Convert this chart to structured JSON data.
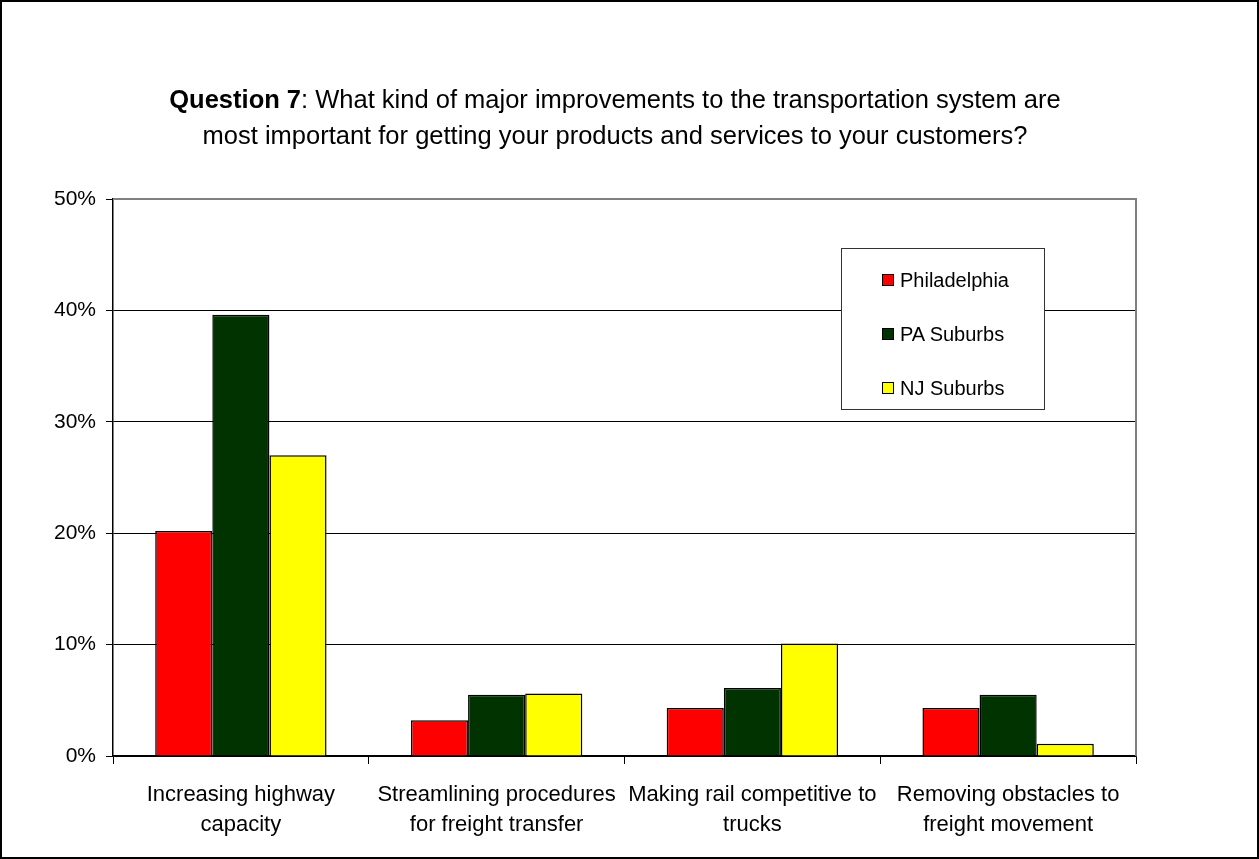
{
  "chart_data": {
    "type": "bar",
    "title": "Question 7: What kind of major improvements to the transportation system are most important for getting your products and services to your customers?",
    "categories": [
      "Increasing highway capacity",
      "Streamlining procedures for freight transfer",
      "Making rail competitive to trucks",
      "Removing obstacles to freight movement"
    ],
    "series": [
      {
        "name": "Philadelphia",
        "color": "#ff0000",
        "values": [
          20.2,
          3.2,
          4.3,
          4.3
        ]
      },
      {
        "name": "PA Suburbs",
        "color": "#003300",
        "values": [
          39.6,
          5.5,
          6.1,
          5.5
        ]
      },
      {
        "name": "NJ Suburbs",
        "color": "#ffff00",
        "values": [
          27.0,
          5.6,
          10.1,
          1.1
        ]
      }
    ],
    "ylim": [
      0,
      50
    ],
    "yticks": [
      {
        "value": 0,
        "label": "0%"
      },
      {
        "value": 10,
        "label": "10%"
      },
      {
        "value": 20,
        "label": "20%"
      },
      {
        "value": 30,
        "label": "30%"
      },
      {
        "value": 40,
        "label": "40%"
      },
      {
        "value": 50,
        "label": "50%"
      }
    ],
    "grid": "y",
    "legend": "top right"
  }
}
